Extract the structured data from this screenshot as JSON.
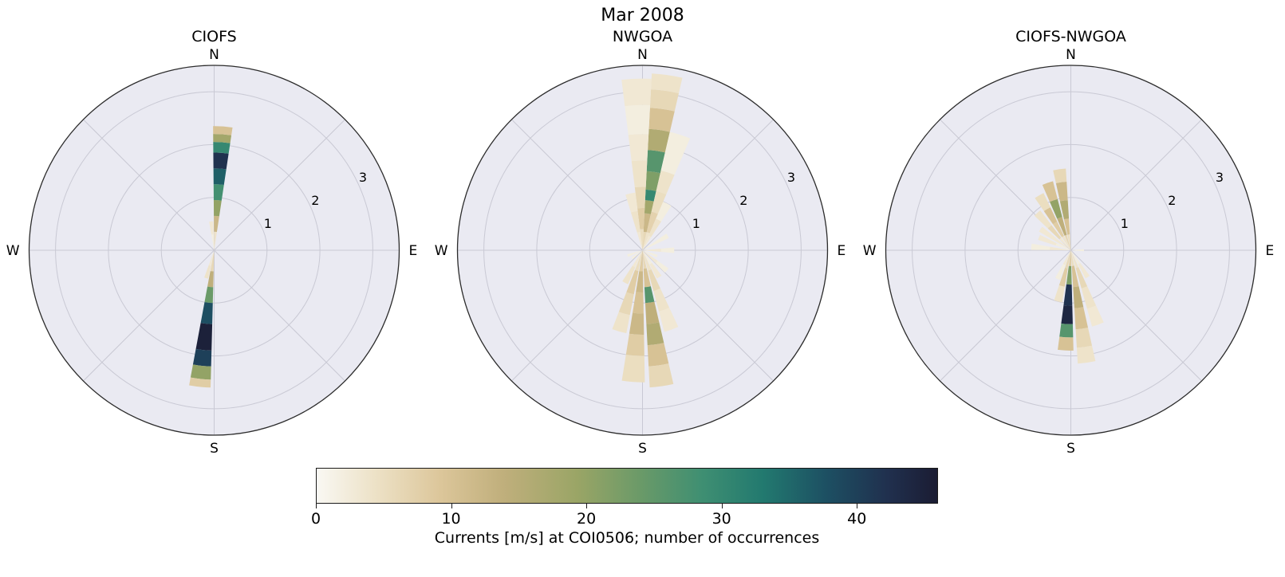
{
  "chart_data": {
    "type": "polar-rose-histogram",
    "title": "Mar 2008",
    "axes": {
      "rmax": 3.5,
      "rticks": [
        1,
        2,
        3
      ],
      "rlabel_azimuth_deg": 64,
      "spoke_step_deg": 45,
      "compass": {
        "n": "N",
        "e": "E",
        "s": "S",
        "w": "W"
      }
    },
    "colorbar": {
      "vmin": 0,
      "vmax": 46,
      "ticks": [
        0,
        10,
        20,
        30,
        40
      ],
      "orientation": "horizontal",
      "label": "Currents [m/s] at COI0506; number of occurrences"
    },
    "colormap_stops": [
      [
        0.0,
        "#f9f8f3"
      ],
      [
        0.1,
        "#ece0c4"
      ],
      [
        0.2,
        "#dcc69a"
      ],
      [
        0.3,
        "#c0af7c"
      ],
      [
        0.42,
        "#9aa566"
      ],
      [
        0.52,
        "#6b9a68"
      ],
      [
        0.62,
        "#3f8f72"
      ],
      [
        0.72,
        "#22796f"
      ],
      [
        0.82,
        "#1d5063"
      ],
      [
        0.92,
        "#20304e"
      ],
      [
        1.0,
        "#1b1c33"
      ]
    ],
    "palette": {
      "polar_background": "#eaeaf2",
      "grid_color": "#c9c9d4",
      "outline_color": "#2b2b2b"
    },
    "segment_format": [
      "r_start_m_s",
      "r_end_m_s",
      "count"
    ],
    "subplots": [
      {
        "title": "CIOFS",
        "petals": [
          {
            "azimuth_deg": 4,
            "width_deg": 9,
            "segments": [
              [
                0,
                0.35,
                4
              ],
              [
                0.35,
                0.65,
                12
              ],
              [
                0.65,
                0.95,
                20
              ],
              [
                0.95,
                1.25,
                28
              ],
              [
                1.25,
                1.55,
                36
              ],
              [
                1.55,
                1.85,
                42
              ],
              [
                1.85,
                2.05,
                30
              ],
              [
                2.05,
                2.2,
                18
              ],
              [
                2.2,
                2.35,
                10
              ]
            ]
          },
          {
            "azimuth_deg": 186,
            "width_deg": 9,
            "segments": [
              [
                0.05,
                0.4,
                6
              ],
              [
                0.4,
                0.7,
                14
              ],
              [
                0.7,
                1.0,
                24
              ],
              [
                1.0,
                1.4,
                38
              ],
              [
                1.4,
                1.9,
                45
              ],
              [
                1.9,
                2.2,
                40
              ],
              [
                2.2,
                2.45,
                20
              ],
              [
                2.45,
                2.6,
                8
              ]
            ]
          },
          {
            "azimuth_deg": 354,
            "width_deg": 8,
            "segments": [
              [
                0,
                0.3,
                2
              ],
              [
                0.3,
                0.55,
                3
              ]
            ]
          },
          {
            "azimuth_deg": 196,
            "width_deg": 8,
            "segments": [
              [
                0,
                0.3,
                3
              ],
              [
                0.3,
                0.55,
                4
              ]
            ]
          }
        ]
      },
      {
        "title": "NWGOA",
        "petals": [
          {
            "azimuth_deg": 8,
            "width_deg": 10,
            "segments": [
              [
                0,
                0.35,
                6
              ],
              [
                0.35,
                0.7,
                12
              ],
              [
                0.7,
                0.95,
                18
              ],
              [
                0.95,
                1.15,
                30
              ],
              [
                1.15,
                1.5,
                22
              ],
              [
                1.5,
                1.9,
                26
              ],
              [
                1.9,
                2.3,
                16
              ],
              [
                2.3,
                2.7,
                10
              ],
              [
                2.7,
                3.05,
                6
              ],
              [
                3.05,
                3.35,
                4
              ]
            ]
          },
          {
            "azimuth_deg": 358,
            "width_deg": 10,
            "segments": [
              [
                0,
                0.4,
                5
              ],
              [
                0.4,
                0.8,
                8
              ],
              [
                0.8,
                1.2,
                6
              ],
              [
                1.2,
                1.7,
                4
              ],
              [
                1.7,
                2.2,
                3
              ],
              [
                2.2,
                2.75,
                2
              ],
              [
                2.75,
                3.25,
                3
              ]
            ]
          },
          {
            "azimuth_deg": 18,
            "width_deg": 10,
            "segments": [
              [
                0,
                0.35,
                4
              ],
              [
                0.35,
                0.75,
                7
              ],
              [
                0.75,
                1.15,
                5
              ],
              [
                1.15,
                1.55,
                4
              ],
              [
                1.55,
                2.3,
                2
              ]
            ]
          },
          {
            "azimuth_deg": 28,
            "width_deg": 10,
            "segments": [
              [
                0,
                0.3,
                3
              ],
              [
                0.3,
                0.65,
                4
              ],
              [
                0.65,
                1.0,
                2
              ]
            ]
          },
          {
            "azimuth_deg": 348,
            "width_deg": 10,
            "segments": [
              [
                0,
                0.35,
                3
              ],
              [
                0.35,
                0.75,
                4
              ],
              [
                0.75,
                1.1,
                3
              ]
            ]
          },
          {
            "azimuth_deg": 60,
            "width_deg": 10,
            "segments": [
              [
                0,
                0.3,
                2
              ],
              [
                0.3,
                0.55,
                2
              ]
            ]
          },
          {
            "azimuth_deg": 90,
            "width_deg": 10,
            "segments": [
              [
                0,
                0.35,
                3
              ],
              [
                0.35,
                0.6,
                2
              ]
            ]
          },
          {
            "azimuth_deg": 112,
            "width_deg": 10,
            "segments": [
              [
                0,
                0.3,
                2
              ]
            ]
          },
          {
            "azimuth_deg": 130,
            "width_deg": 10,
            "segments": [
              [
                0,
                0.35,
                3
              ],
              [
                0.35,
                0.6,
                2
              ]
            ]
          },
          {
            "azimuth_deg": 172,
            "width_deg": 10,
            "segments": [
              [
                0,
                0.35,
                6
              ],
              [
                0.35,
                0.7,
                10
              ],
              [
                0.7,
                1.0,
                26
              ],
              [
                1.0,
                1.4,
                14
              ],
              [
                1.4,
                1.8,
                16
              ],
              [
                1.8,
                2.2,
                10
              ],
              [
                2.2,
                2.6,
                6
              ]
            ]
          },
          {
            "azimuth_deg": 184,
            "width_deg": 10,
            "segments": [
              [
                0,
                0.4,
                8
              ],
              [
                0.4,
                0.8,
                12
              ],
              [
                0.8,
                1.2,
                10
              ],
              [
                1.2,
                1.6,
                12
              ],
              [
                1.6,
                2.0,
                8
              ],
              [
                2.0,
                2.5,
                5
              ]
            ]
          },
          {
            "azimuth_deg": 196,
            "width_deg": 10,
            "segments": [
              [
                0,
                0.4,
                5
              ],
              [
                0.4,
                0.85,
                8
              ],
              [
                0.85,
                1.25,
                6
              ],
              [
                1.25,
                1.6,
                4
              ]
            ]
          },
          {
            "azimuth_deg": 208,
            "width_deg": 10,
            "segments": [
              [
                0,
                0.35,
                3
              ],
              [
                0.35,
                0.7,
                4
              ]
            ]
          },
          {
            "azimuth_deg": 160,
            "width_deg": 10,
            "segments": [
              [
                0,
                0.4,
                4
              ],
              [
                0.4,
                0.8,
                6
              ],
              [
                0.8,
                1.2,
                4
              ],
              [
                1.2,
                1.6,
                3
              ]
            ]
          },
          {
            "azimuth_deg": 148,
            "width_deg": 10,
            "segments": [
              [
                0,
                0.3,
                2
              ],
              [
                0.3,
                0.6,
                3
              ]
            ]
          },
          {
            "azimuth_deg": 250,
            "width_deg": 10,
            "segments": [
              [
                0,
                0.3,
                2
              ]
            ]
          },
          {
            "azimuth_deg": 232,
            "width_deg": 10,
            "segments": [
              [
                0,
                0.25,
                2
              ]
            ]
          }
        ]
      },
      {
        "title": "CIOFS-NWGOA",
        "petals": [
          {
            "azimuth_deg": 352,
            "width_deg": 9,
            "segments": [
              [
                0,
                0.3,
                5
              ],
              [
                0.3,
                0.6,
                10
              ],
              [
                0.6,
                0.95,
                16
              ],
              [
                0.95,
                1.3,
                12
              ],
              [
                1.3,
                1.55,
                6
              ]
            ]
          },
          {
            "azimuth_deg": 341,
            "width_deg": 9,
            "segments": [
              [
                0,
                0.3,
                6
              ],
              [
                0.3,
                0.65,
                14
              ],
              [
                0.65,
                1.0,
                20
              ],
              [
                1.0,
                1.35,
                10
              ]
            ]
          },
          {
            "azimuth_deg": 330,
            "width_deg": 9,
            "segments": [
              [
                0,
                0.3,
                4
              ],
              [
                0.3,
                0.6,
                8
              ],
              [
                0.6,
                0.9,
                10
              ],
              [
                0.9,
                1.2,
                5
              ]
            ]
          },
          {
            "azimuth_deg": 318,
            "width_deg": 9,
            "segments": [
              [
                0,
                0.3,
                3
              ],
              [
                0.3,
                0.6,
                6
              ],
              [
                0.6,
                0.95,
                4
              ]
            ]
          },
          {
            "azimuth_deg": 305,
            "width_deg": 9,
            "segments": [
              [
                0,
                0.35,
                3
              ],
              [
                0.35,
                0.7,
                3
              ]
            ]
          },
          {
            "azimuth_deg": 292,
            "width_deg": 9,
            "segments": [
              [
                0,
                0.3,
                2
              ],
              [
                0.3,
                0.65,
                3
              ]
            ]
          },
          {
            "azimuth_deg": 275,
            "width_deg": 9,
            "segments": [
              [
                0,
                0.4,
                3
              ],
              [
                0.4,
                0.75,
                2
              ]
            ]
          },
          {
            "azimuth_deg": 183,
            "width_deg": 9,
            "segments": [
              [
                0,
                0.3,
                8
              ],
              [
                0.3,
                0.65,
                22
              ],
              [
                0.65,
                1.05,
                42
              ],
              [
                1.05,
                1.4,
                44
              ],
              [
                1.4,
                1.65,
                26
              ],
              [
                1.65,
                1.9,
                10
              ]
            ]
          },
          {
            "azimuth_deg": 172,
            "width_deg": 9,
            "segments": [
              [
                0,
                0.3,
                5
              ],
              [
                0.3,
                0.7,
                10
              ],
              [
                0.7,
                1.1,
                14
              ],
              [
                1.1,
                1.5,
                10
              ],
              [
                1.5,
                1.85,
                6
              ],
              [
                1.85,
                2.15,
                4
              ]
            ]
          },
          {
            "azimuth_deg": 194,
            "width_deg": 9,
            "segments": [
              [
                0,
                0.35,
                6
              ],
              [
                0.35,
                0.7,
                8
              ],
              [
                0.7,
                1.0,
                4
              ]
            ]
          },
          {
            "azimuth_deg": 160,
            "width_deg": 9,
            "segments": [
              [
                0,
                0.35,
                4
              ],
              [
                0.35,
                0.75,
                6
              ],
              [
                0.75,
                1.15,
                4
              ],
              [
                1.15,
                1.5,
                3
              ]
            ]
          },
          {
            "azimuth_deg": 148,
            "width_deg": 9,
            "segments": [
              [
                0,
                0.3,
                2
              ],
              [
                0.3,
                0.6,
                3
              ]
            ]
          },
          {
            "azimuth_deg": 205,
            "width_deg": 9,
            "segments": [
              [
                0,
                0.3,
                3
              ],
              [
                0.3,
                0.6,
                2
              ]
            ]
          },
          {
            "azimuth_deg": 90,
            "width_deg": 9,
            "segments": [
              [
                0,
                0.25,
                2
              ]
            ]
          }
        ]
      }
    ]
  }
}
